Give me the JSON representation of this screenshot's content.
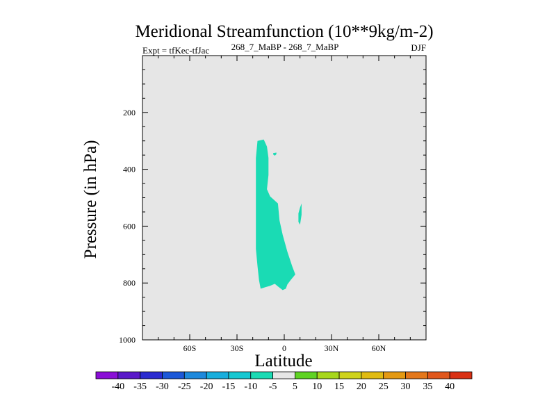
{
  "chart_data": {
    "type": "heatmap",
    "title": "Meridional Streamfunction (10**9kg/m-2)",
    "subtitle_left": "Expt = tfKec-tfJac",
    "subtitle_center": "268_7_MaBP - 268_7_MaBP",
    "subtitle_right": "DJF",
    "xlabel": "Latitude",
    "ylabel": "Pressure (in hPa)",
    "xlim": [
      -90,
      90
    ],
    "ylim": [
      0,
      1000
    ],
    "y_inverted": true,
    "xticks": [
      {
        "value": -60,
        "label": "60S"
      },
      {
        "value": -30,
        "label": "30S"
      },
      {
        "value": 0,
        "label": "0"
      },
      {
        "value": 30,
        "label": "30N"
      },
      {
        "value": 60,
        "label": "60N"
      }
    ],
    "yticks": [
      {
        "value": 200,
        "label": "200"
      },
      {
        "value": 400,
        "label": "400"
      },
      {
        "value": 600,
        "label": "600"
      },
      {
        "value": 800,
        "label": "800"
      },
      {
        "value": 1000,
        "label": "1000"
      }
    ],
    "background_color": "#e6e6e6",
    "filled_regions": [
      {
        "level_range": [
          -10,
          -5
        ],
        "color": "#1adbb4",
        "points": [
          [
            -17,
            300
          ],
          [
            -13,
            295
          ],
          [
            -11,
            320
          ],
          [
            -10,
            360
          ],
          [
            -10,
            420
          ],
          [
            -11,
            470
          ],
          [
            -9,
            495
          ],
          [
            -4,
            520
          ],
          [
            -3,
            580
          ],
          [
            -1,
            630
          ],
          [
            2,
            690
          ],
          [
            5,
            740
          ],
          [
            7,
            770
          ],
          [
            4,
            790
          ],
          [
            2,
            805
          ],
          [
            1,
            820
          ],
          [
            -1,
            825
          ],
          [
            -4,
            812
          ],
          [
            -6,
            803
          ],
          [
            -9,
            810
          ],
          [
            -12,
            815
          ],
          [
            -15,
            820
          ],
          [
            -16,
            790
          ],
          [
            -17,
            740
          ],
          [
            -18,
            680
          ],
          [
            -18,
            620
          ],
          [
            -18,
            550
          ],
          [
            -18,
            480
          ],
          [
            -18,
            420
          ],
          [
            -18,
            360
          ]
        ]
      },
      {
        "level_range": [
          -10,
          -5
        ],
        "color": "#1adbb4",
        "points": [
          [
            -7,
            343
          ],
          [
            -5,
            341
          ],
          [
            -5,
            347
          ],
          [
            -6,
            352
          ],
          [
            -7,
            348
          ]
        ]
      },
      {
        "level_range": [
          -10,
          -5
        ],
        "color": "#1adbb4",
        "points": [
          [
            10,
            535
          ],
          [
            11,
            520
          ],
          [
            11,
            560
          ],
          [
            10,
            595
          ],
          [
            9,
            585
          ],
          [
            9,
            555
          ]
        ]
      }
    ],
    "colorbar": {
      "colors": [
        "#8a0ed6",
        "#5a19c9",
        "#2b2bd0",
        "#1c58d8",
        "#1e89dc",
        "#18aedc",
        "#16c8d2",
        "#1adbb4",
        "#e6e6e6",
        "#5fd323",
        "#a7d71b",
        "#cfd31c",
        "#e0bb12",
        "#e49912",
        "#e4771a",
        "#e0571c",
        "#d93114"
      ],
      "labels": [
        "-40",
        "-35",
        "-30",
        "-25",
        "-20",
        "-15",
        "-10",
        "-5",
        "5",
        "10",
        "15",
        "20",
        "25",
        "30",
        "35",
        "40"
      ]
    }
  }
}
